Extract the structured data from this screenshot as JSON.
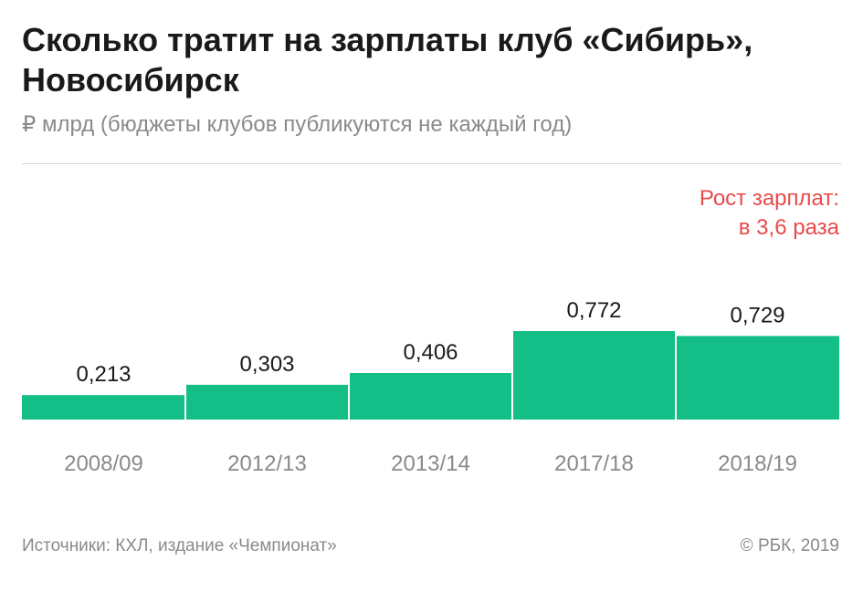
{
  "title": "Сколько тратит на зарплаты клуб «Сибирь», Новосибирск",
  "subtitle": "₽ млрд (бюджеты клубов публикуются не каждый год)",
  "annotation": {
    "line1": "Рост зарплат:",
    "line2": "в 3,6 раза"
  },
  "footer": {
    "source": "Источники: КХЛ, издание «Чемпионат»",
    "copyright": "© РБК, 2019"
  },
  "colors": {
    "bar": "#14be87",
    "annotation": "#e84a4a",
    "text": "#1a1a1a",
    "muted": "#8a8a8a"
  },
  "chart_data": {
    "type": "bar",
    "categories": [
      "2008/09",
      "2012/13",
      "2013/14",
      "2017/18",
      "2018/19"
    ],
    "values": [
      0.213,
      0.303,
      0.406,
      0.772,
      0.729
    ],
    "value_labels": [
      "0,213",
      "0,303",
      "0,406",
      "0,772",
      "0,729"
    ],
    "ylim": [
      0,
      0.772
    ],
    "grid": false,
    "legend": "none"
  }
}
